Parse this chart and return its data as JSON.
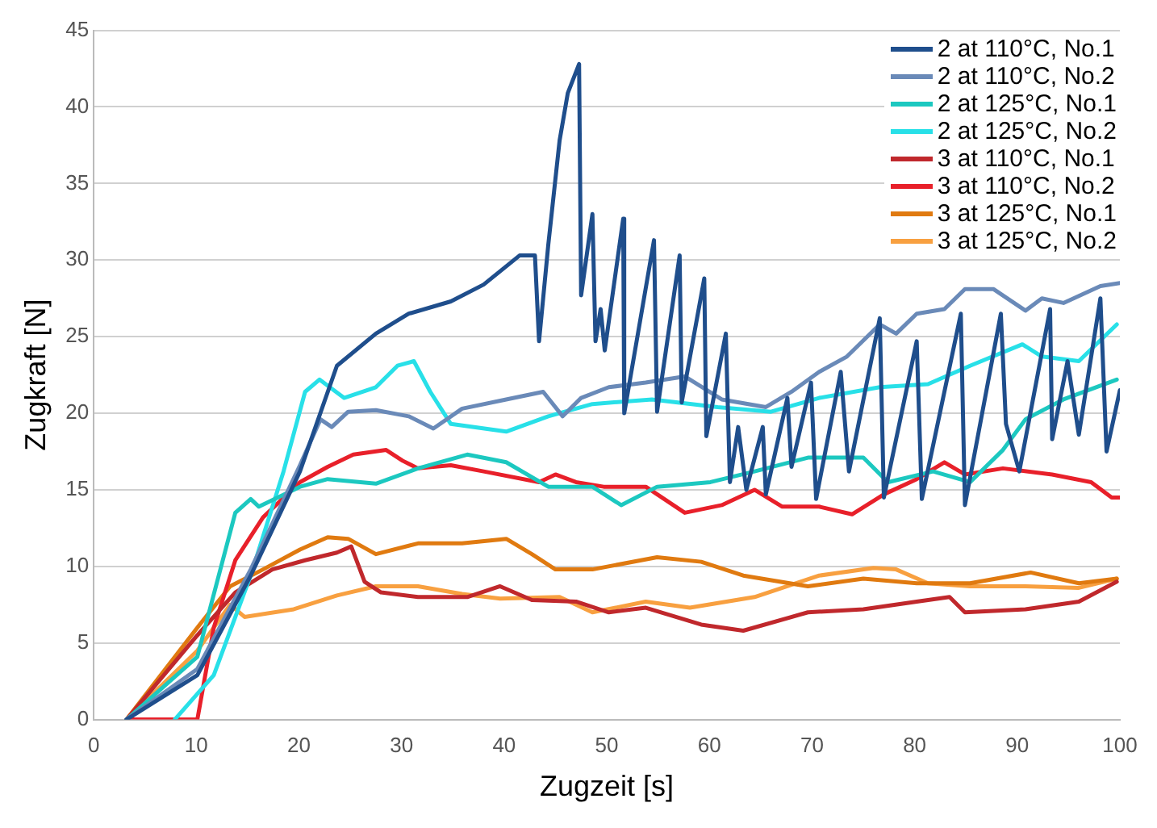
{
  "chart_data": {
    "type": "line",
    "xlabel": "Zugzeit [s]",
    "ylabel": "Zugkraft [N]",
    "xlim": [
      0,
      100
    ],
    "xticks": [
      0,
      10,
      20,
      30,
      40,
      50,
      60,
      70,
      80,
      90,
      100
    ],
    "ylim": [
      0,
      45
    ],
    "yticks": [
      0,
      5,
      10,
      15,
      20,
      25,
      30,
      35,
      40,
      45
    ],
    "grid": "y",
    "legend": "top right",
    "marker": "none",
    "line_style": "solid",
    "series": [
      {
        "name": "2 at 110°C, No.1",
        "color": "#1f4e8c",
        "x": [
          3.2,
          10.1,
          15.3,
          20.1,
          23.7,
          27.5,
          30.7,
          34.8,
          38,
          41.5,
          43,
          43.4,
          44.3,
          45.4,
          46.2,
          47.3,
          47.5,
          48.6,
          48.9,
          49.4,
          49.8,
          51.6,
          51.7,
          54.6,
          54.9,
          57.1,
          57.3,
          59.5,
          59.7,
          61.6,
          62,
          62.8,
          63.6,
          65.2,
          65.5,
          67.6,
          68,
          69.9,
          70.4,
          72.8,
          73.6,
          76.6,
          77,
          80.2,
          80.7,
          84.5,
          84.9,
          88.4,
          88.9,
          90.2,
          93.2,
          93.4,
          94.9,
          96,
          98.1,
          98.7,
          100
        ],
        "values": [
          0,
          2.9,
          9.4,
          16.2,
          23.1,
          25.2,
          26.5,
          27.3,
          28.4,
          30.3,
          30.3,
          24.7,
          31,
          37.8,
          40.9,
          42.8,
          27.7,
          33,
          24.7,
          26.8,
          24.1,
          32.7,
          20,
          31.3,
          20.1,
          30.3,
          20.7,
          28.8,
          18.5,
          25.2,
          15.5,
          19.1,
          15,
          19.1,
          14.7,
          21,
          16.5,
          22,
          14.4,
          22.7,
          16.2,
          26.2,
          14.5,
          24.7,
          14.4,
          26.5,
          14,
          26.5,
          19.3,
          16.2,
          26.8,
          18.3,
          23.4,
          18.6,
          27.5,
          17.5,
          21.5
        ]
      },
      {
        "name": "2 at 110°C, No.2",
        "color": "#6a8ab8",
        "x": [
          3.2,
          10.1,
          15.3,
          20.1,
          22.1,
          23.2,
          24.8,
          27.5,
          30.7,
          33.1,
          35.9,
          40.2,
          43.8,
          45.7,
          47.5,
          50.2,
          53.8,
          57.6,
          61.2,
          65.5,
          68,
          70.7,
          73.4,
          76.6,
          78.2,
          80.2,
          82.9,
          84.9,
          87.7,
          90.8,
          92.4,
          94.5,
          98.1,
          100
        ],
        "values": [
          0,
          3.3,
          9.8,
          16.6,
          19.6,
          19.1,
          20.1,
          20.2,
          19.8,
          19,
          20.3,
          20.9,
          21.4,
          19.8,
          21,
          21.7,
          22,
          22.4,
          20.9,
          20.4,
          21.4,
          22.7,
          23.7,
          25.8,
          25.2,
          26.5,
          26.8,
          28.1,
          28.1,
          26.7,
          27.5,
          27.2,
          28.3,
          28.5
        ]
      },
      {
        "name": "2 at 125°C, No.1",
        "color": "#1cc8c0",
        "x": [
          3.2,
          10.1,
          13.8,
          15.3,
          16.1,
          20.1,
          22.8,
          27.5,
          31.6,
          36.4,
          40.2,
          44.3,
          48.6,
          51.4,
          54.9,
          60.1,
          64.4,
          69.6,
          75,
          77.4,
          81.8,
          85.4,
          88.6,
          90.8,
          94.5,
          99.7
        ],
        "values": [
          0,
          4.1,
          13.5,
          14.4,
          13.9,
          15.2,
          15.7,
          15.4,
          16.4,
          17.3,
          16.8,
          15.2,
          15.2,
          14,
          15.2,
          15.5,
          16.2,
          17.1,
          17.1,
          15.5,
          16.2,
          15.5,
          17.6,
          19.6,
          20.9,
          22.2
        ]
      },
      {
        "name": "2 at 125°C, No.2",
        "color": "#28e0e8",
        "x": [
          7.9,
          11.7,
          15.3,
          18.5,
          20.6,
          22,
          24.4,
          27.5,
          29.6,
          31.2,
          32.8,
          34.8,
          40.2,
          44.3,
          48.6,
          54.4,
          60.8,
          66,
          70.7,
          76.6,
          81.3,
          85.4,
          90.5,
          92.4,
          96,
          99.7
        ],
        "values": [
          0,
          2.9,
          9.4,
          16.2,
          21.4,
          22.2,
          21,
          21.7,
          23.1,
          23.4,
          21.4,
          19.3,
          18.8,
          19.8,
          20.6,
          20.9,
          20.4,
          20.1,
          21,
          21.7,
          21.9,
          23.1,
          24.5,
          23.7,
          23.4,
          25.8
        ]
      },
      {
        "name": "3 at 110°C, No.1",
        "color": "#c0282c",
        "x": [
          3.2,
          10.1,
          13.8,
          17.4,
          20.6,
          23.7,
          25.1,
          26.4,
          28,
          31.6,
          36.4,
          39.6,
          42.7,
          47,
          50.2,
          53.8,
          59.2,
          63.3,
          69.6,
          75,
          80.2,
          83.4,
          84.9,
          90.8,
          96,
          99.7
        ],
        "values": [
          0,
          5.5,
          8.3,
          9.8,
          10.4,
          10.9,
          11.3,
          9,
          8.3,
          8,
          8,
          8.7,
          7.8,
          7.7,
          7,
          7.3,
          6.2,
          5.8,
          7,
          7.2,
          7.7,
          8,
          7,
          7.2,
          7.7,
          9
        ]
      },
      {
        "name": "3 at 110°C, No.2",
        "color": "#e8202a",
        "x": [
          3.2,
          10.1,
          11.7,
          13.8,
          16.5,
          20.1,
          22.8,
          25.3,
          28.5,
          30.1,
          31.6,
          34.8,
          38,
          43.4,
          45,
          47,
          49.7,
          53.8,
          57.6,
          61.2,
          64.4,
          67.1,
          70.7,
          73.9,
          77,
          80.2,
          82.9,
          84.9,
          88.6,
          93.4,
          97.2,
          99.2,
          100
        ],
        "values": [
          0,
          0,
          6,
          10.4,
          13.2,
          15.5,
          16.5,
          17.3,
          17.6,
          16.9,
          16.4,
          16.6,
          16.2,
          15.5,
          16,
          15.5,
          15.2,
          15.2,
          13.5,
          14,
          15,
          13.9,
          13.9,
          13.4,
          14.7,
          15.7,
          16.8,
          16,
          16.4,
          16,
          15.5,
          14.5,
          14.5
        ]
      },
      {
        "name": "3 at 125°C, No.1",
        "color": "#e07a10",
        "x": [
          3.2,
          10.1,
          13.3,
          16.5,
          20.1,
          22.8,
          24.8,
          27.5,
          31.6,
          35.9,
          40.2,
          42.7,
          45,
          48.6,
          54.9,
          59.2,
          63.3,
          69.6,
          75,
          80.2,
          85.4,
          91.3,
          96,
          99.7
        ],
        "values": [
          0,
          6,
          8.7,
          9.8,
          11.1,
          11.9,
          11.8,
          10.8,
          11.5,
          11.5,
          11.8,
          10.8,
          9.8,
          9.8,
          10.6,
          10.3,
          9.4,
          8.7,
          9.2,
          8.9,
          8.9,
          9.6,
          8.9,
          9.2
        ]
      },
      {
        "name": "3 at 125°C, No.2",
        "color": "#f8a040",
        "x": [
          3.2,
          10.1,
          13.3,
          14.7,
          19.5,
          23.7,
          27.5,
          31.6,
          35.9,
          39.6,
          45.4,
          48.6,
          53.8,
          58.1,
          64.4,
          70.7,
          76,
          78.2,
          81.3,
          85.4,
          90.8,
          96,
          99.7
        ],
        "values": [
          0,
          4.5,
          7.5,
          6.7,
          7.2,
          8.1,
          8.7,
          8.7,
          8.2,
          7.9,
          8,
          7,
          7.7,
          7.3,
          8,
          9.4,
          9.9,
          9.8,
          8.9,
          8.7,
          8.7,
          8.6,
          9.2
        ]
      }
    ]
  }
}
